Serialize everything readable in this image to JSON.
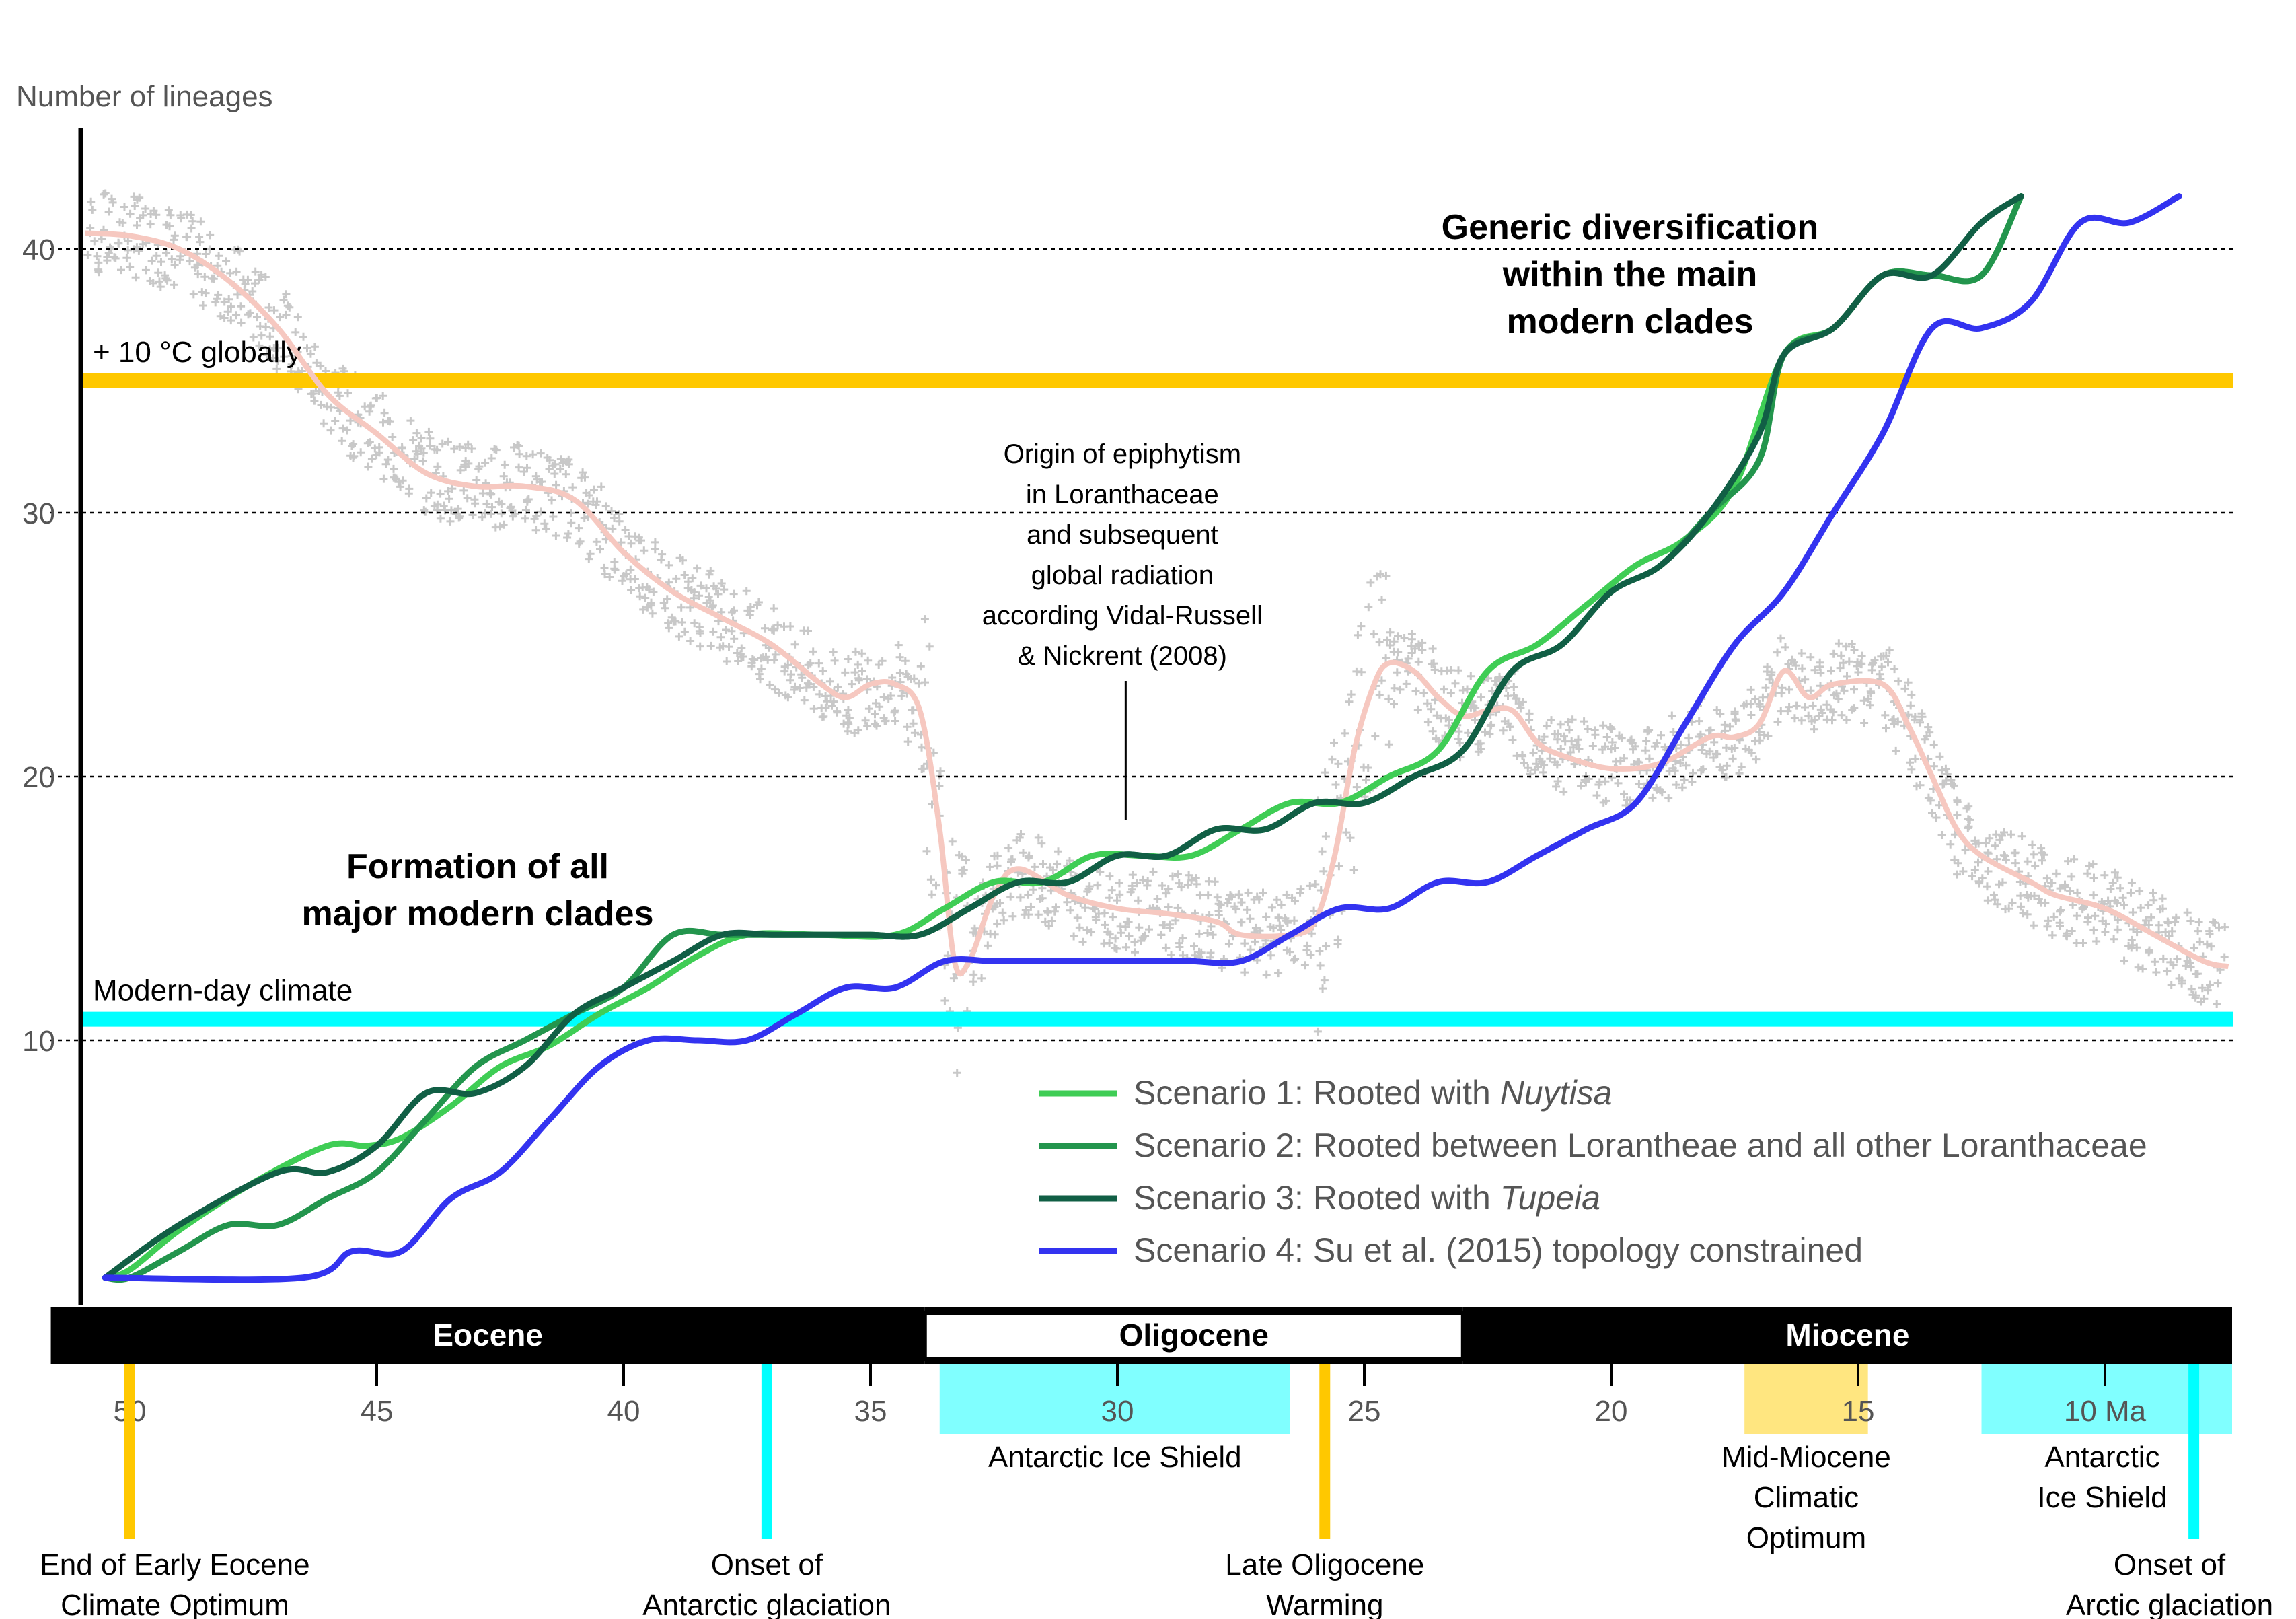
{
  "chart_data": {
    "type": "line",
    "ylabel": "Number of lineages",
    "x_unit": "Ma",
    "xlim": [
      51,
      6.5
    ],
    "ylim": [
      0,
      43
    ],
    "x_reversed": true,
    "grid_y": [
      10,
      20,
      30,
      40
    ],
    "yticks": [
      "10",
      "20",
      "30",
      "40"
    ],
    "xticks": [
      {
        "value": 50,
        "label": "50"
      },
      {
        "value": 45,
        "label": "45"
      },
      {
        "value": 40,
        "label": "40"
      },
      {
        "value": 35,
        "label": "35"
      },
      {
        "value": 30,
        "label": "30"
      },
      {
        "value": 25,
        "label": "25"
      },
      {
        "value": 20,
        "label": "20"
      },
      {
        "value": 15,
        "label": "15"
      },
      {
        "value": 10,
        "label": "10 Ma"
      }
    ],
    "series": [
      {
        "name_prefix": "Scenario 1: Rooted with ",
        "name_italic": "Nuytisa",
        "color": "#3fcd55",
        "points": [
          [
            50.5,
            1
          ],
          [
            50,
            1.3
          ],
          [
            49,
            2.8
          ],
          [
            47.5,
            4.6
          ],
          [
            46,
            6
          ],
          [
            45.2,
            6
          ],
          [
            44.5,
            6.3
          ],
          [
            43.5,
            7.5
          ],
          [
            42.5,
            9
          ],
          [
            41.5,
            9.8
          ],
          [
            40.5,
            11
          ],
          [
            39.5,
            12
          ],
          [
            38.5,
            13.2
          ],
          [
            37.5,
            14
          ],
          [
            36,
            14
          ],
          [
            34.5,
            14
          ],
          [
            33.5,
            15
          ],
          [
            32.5,
            16
          ],
          [
            31.5,
            16
          ],
          [
            30.5,
            17
          ],
          [
            29.5,
            17
          ],
          [
            28.5,
            17
          ],
          [
            27.5,
            18
          ],
          [
            26.5,
            19
          ],
          [
            25.5,
            19
          ],
          [
            24.5,
            20
          ],
          [
            23.5,
            21
          ],
          [
            22.5,
            24
          ],
          [
            21.5,
            25
          ],
          [
            20.5,
            26.5
          ],
          [
            19.5,
            28
          ],
          [
            18.5,
            29
          ],
          [
            17.5,
            31
          ],
          [
            16.5,
            36
          ],
          [
            15.5,
            37
          ],
          [
            14.5,
            39
          ],
          [
            13.5,
            39
          ],
          [
            12.5,
            39
          ],
          [
            11.7,
            42
          ]
        ]
      },
      {
        "name": "Scenario 2: Rooted between Lorantheae and all other Loranthaceae",
        "color": "#23954d",
        "points": [
          [
            50.5,
            1
          ],
          [
            50,
            1
          ],
          [
            49,
            2
          ],
          [
            48,
            3
          ],
          [
            47,
            3
          ],
          [
            46,
            4
          ],
          [
            45,
            5
          ],
          [
            44,
            7
          ],
          [
            43,
            9
          ],
          [
            42,
            10
          ],
          [
            41,
            11
          ],
          [
            40,
            12
          ],
          [
            39,
            14
          ],
          [
            38,
            14
          ],
          [
            37,
            14
          ],
          [
            36,
            14
          ],
          [
            35,
            14
          ],
          [
            34,
            14
          ],
          [
            33,
            15
          ],
          [
            32,
            16
          ],
          [
            31,
            16
          ],
          [
            30,
            17
          ],
          [
            29,
            17
          ],
          [
            28,
            18
          ],
          [
            27,
            18
          ],
          [
            26,
            19
          ],
          [
            25,
            19
          ],
          [
            24,
            20
          ],
          [
            23,
            21
          ],
          [
            22,
            24
          ],
          [
            21,
            25
          ],
          [
            20,
            27
          ],
          [
            19,
            28
          ],
          [
            18,
            30
          ],
          [
            17,
            32
          ],
          [
            16.5,
            36
          ],
          [
            15.5,
            37
          ],
          [
            14.5,
            39
          ],
          [
            13.5,
            39
          ],
          [
            12.5,
            39
          ],
          [
            11.7,
            42
          ]
        ]
      },
      {
        "name_prefix": "Scenario 3: Rooted with ",
        "name_italic": "Tupeia",
        "color": "#115f45",
        "points": [
          [
            50.5,
            1
          ],
          [
            49,
            3
          ],
          [
            47,
            5
          ],
          [
            46,
            5
          ],
          [
            45,
            6
          ],
          [
            44,
            8
          ],
          [
            43,
            8
          ],
          [
            42,
            9
          ],
          [
            41,
            11
          ],
          [
            40,
            12
          ],
          [
            39,
            13
          ],
          [
            38,
            14
          ],
          [
            37,
            14
          ],
          [
            36,
            14
          ],
          [
            35,
            14
          ],
          [
            34,
            14
          ],
          [
            33,
            15
          ],
          [
            32,
            16
          ],
          [
            31,
            16
          ],
          [
            30,
            17
          ],
          [
            29,
            17
          ],
          [
            28,
            18
          ],
          [
            27,
            18
          ],
          [
            26,
            19
          ],
          [
            25,
            19
          ],
          [
            24,
            20
          ],
          [
            23,
            21
          ],
          [
            22,
            24
          ],
          [
            21,
            25
          ],
          [
            20,
            27
          ],
          [
            19,
            28
          ],
          [
            18,
            30
          ],
          [
            17,
            33
          ],
          [
            16.5,
            36
          ],
          [
            15.5,
            37
          ],
          [
            14.5,
            39
          ],
          [
            13.5,
            39
          ],
          [
            12.5,
            41
          ],
          [
            11.7,
            42
          ]
        ]
      },
      {
        "name": "Scenario 4: Su et al. (2015) topology constrained",
        "color": "#3333f0",
        "points": [
          [
            50.5,
            1
          ],
          [
            46.5,
            1
          ],
          [
            45.5,
            2
          ],
          [
            44.5,
            2
          ],
          [
            43.5,
            4
          ],
          [
            42.5,
            5
          ],
          [
            41.5,
            7
          ],
          [
            40.5,
            9
          ],
          [
            39.5,
            10
          ],
          [
            38.5,
            10
          ],
          [
            37.5,
            10
          ],
          [
            36.5,
            11
          ],
          [
            35.5,
            12
          ],
          [
            34.5,
            12
          ],
          [
            33.5,
            13
          ],
          [
            32.5,
            13
          ],
          [
            31.5,
            13
          ],
          [
            30.5,
            13
          ],
          [
            29.5,
            13
          ],
          [
            28.5,
            13
          ],
          [
            27.5,
            13
          ],
          [
            26.5,
            14
          ],
          [
            25.5,
            15
          ],
          [
            24.5,
            15
          ],
          [
            23.5,
            16
          ],
          [
            22.5,
            16
          ],
          [
            21.5,
            17
          ],
          [
            20.5,
            18
          ],
          [
            19.5,
            19
          ],
          [
            18.5,
            22
          ],
          [
            17.5,
            25
          ],
          [
            16.5,
            27
          ],
          [
            15.5,
            30
          ],
          [
            14.5,
            33
          ],
          [
            13.5,
            37
          ],
          [
            12.5,
            37
          ],
          [
            11.5,
            38
          ],
          [
            10.5,
            41
          ],
          [
            9.5,
            41
          ],
          [
            8.5,
            42
          ]
        ]
      }
    ],
    "climate_curve": {
      "color": "#f6c8c0",
      "points": [
        [
          50.9,
          40.6
        ],
        [
          50,
          40.5
        ],
        [
          49,
          40
        ],
        [
          48,
          38.8
        ],
        [
          47,
          37
        ],
        [
          46,
          34.5
        ],
        [
          45,
          33
        ],
        [
          44,
          31.5
        ],
        [
          43,
          31
        ],
        [
          42,
          31
        ],
        [
          41,
          30.5
        ],
        [
          40,
          28.5
        ],
        [
          39,
          27
        ],
        [
          38,
          26
        ],
        [
          37,
          25
        ],
        [
          36,
          23.5
        ],
        [
          35.5,
          23
        ],
        [
          35,
          23.5
        ],
        [
          34.5,
          23.5
        ],
        [
          34,
          22.5
        ],
        [
          33.6,
          18
        ],
        [
          33.3,
          13
        ],
        [
          33,
          13
        ],
        [
          32.5,
          15.5
        ],
        [
          32,
          16.5
        ],
        [
          31,
          15.5
        ],
        [
          30,
          15
        ],
        [
          29,
          14.8
        ],
        [
          28,
          14.5
        ],
        [
          27.5,
          14
        ],
        [
          26.5,
          14
        ],
        [
          26,
          14.5
        ],
        [
          25.6,
          17
        ],
        [
          25.2,
          21
        ],
        [
          24.8,
          23.5
        ],
        [
          24.5,
          24.3
        ],
        [
          24,
          24
        ],
        [
          23.5,
          23
        ],
        [
          23,
          22.3
        ],
        [
          22.5,
          22.5
        ],
        [
          22,
          22.5
        ],
        [
          21.5,
          21.3
        ],
        [
          21,
          20.8
        ],
        [
          20,
          20.3
        ],
        [
          19,
          20.5
        ],
        [
          18,
          21.5
        ],
        [
          17.5,
          21.5
        ],
        [
          17,
          22
        ],
        [
          16.5,
          24
        ],
        [
          16,
          23
        ],
        [
          15.5,
          23.5
        ],
        [
          14.5,
          23.5
        ],
        [
          14,
          22
        ],
        [
          13.5,
          20
        ],
        [
          13,
          18
        ],
        [
          12.5,
          17
        ],
        [
          11.5,
          16
        ],
        [
          11,
          15.5
        ],
        [
          10,
          15
        ],
        [
          9,
          14
        ],
        [
          8,
          13
        ],
        [
          7.5,
          12.8
        ]
      ]
    },
    "reference_lines": [
      {
        "y": 35,
        "label": "+ 10 °C globally",
        "color": "#ffc800"
      },
      {
        "y": 10.8,
        "label": "Modern-day climate",
        "color": "#00ffff"
      }
    ],
    "annotations": {
      "main_clades": [
        "Formation of all",
        "major modern clades"
      ],
      "diversification": [
        "Generic diversification",
        "within the main",
        "modern clades"
      ],
      "epiphytism": {
        "x": 29.9,
        "y": 18.2,
        "lines": [
          "Origin of epiphytism",
          "in Loranthaceae",
          "and subsequent",
          "global radiation",
          "according Vidal-Russell",
          "& Nickrent (2008)"
        ]
      }
    },
    "epochs": [
      {
        "name": "Eocene",
        "start": 51.6,
        "end": 33.9,
        "fill": "#000000",
        "text_color": "#ffffff"
      },
      {
        "name": "Oligocene",
        "start": 33.9,
        "end": 23.0,
        "fill": "#ffffff",
        "text_color": "#000000"
      },
      {
        "name": "Miocene",
        "start": 23.0,
        "end": 6.5,
        "fill": "#000000",
        "text_color": "#ffffff"
      }
    ],
    "climate_events": [
      {
        "kind": "line",
        "x": 50,
        "color": "#ffc800",
        "lines": [
          "End of Early Eocene",
          "Climate Optimum"
        ],
        "row": 2
      },
      {
        "kind": "line",
        "x": 37.1,
        "color": "#00ffff",
        "lines": [
          "Onset of",
          "Antarctic glaciation"
        ],
        "row": 2
      },
      {
        "kind": "line",
        "x": 25.8,
        "color": "#ffc800",
        "lines": [
          "Late Oligocene",
          "Warming"
        ],
        "row": 2
      },
      {
        "kind": "line",
        "x": 8.2,
        "color": "#00ffff",
        "lines": [
          "Onset of",
          "Arctic glaciation"
        ],
        "row": 2
      },
      {
        "kind": "band",
        "start": 33.6,
        "end": 26.5,
        "color": "#80ffff",
        "lines": [
          "Antarctic Ice Shield"
        ],
        "row": 1
      },
      {
        "kind": "band",
        "start": 17.3,
        "end": 14.8,
        "color": "#ffe680",
        "lines": [
          "Mid-Miocene",
          "Climatic",
          "Optimum"
        ],
        "row": 1
      },
      {
        "kind": "band",
        "start": 12.5,
        "end": 6.5,
        "color": "#80ffff",
        "lines": [
          "Antarctic",
          "Ice Shield"
        ],
        "row": 1
      }
    ]
  }
}
